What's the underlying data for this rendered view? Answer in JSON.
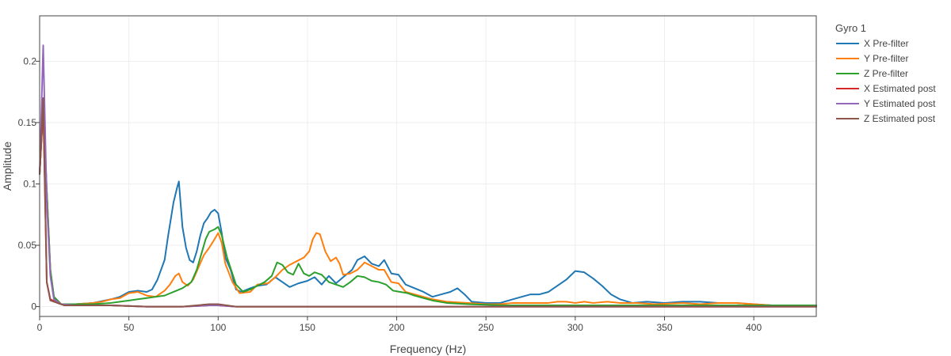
{
  "chart_data": {
    "type": "line",
    "title": "",
    "xlabel": "Frequency (Hz)",
    "ylabel": "Amplitude",
    "xlim": [
      0,
      435
    ],
    "ylim": [
      -0.008,
      0.237
    ],
    "x_ticks": [
      0,
      50,
      100,
      150,
      200,
      250,
      300,
      350,
      400
    ],
    "y_ticks": [
      0,
      0.05,
      0.1,
      0.15,
      0.2
    ],
    "y_tick_labels": [
      "0",
      "0.05",
      "0.1",
      "0.15",
      "0.2"
    ],
    "grid": true,
    "legend": {
      "title": "Gyro 1",
      "placement": "right"
    },
    "series": [
      {
        "name": "X Pre-filter",
        "color": "#1f77b4",
        "points": [
          [
            0,
            0.108
          ],
          [
            2,
            0.165
          ],
          [
            4,
            0.095
          ],
          [
            6,
            0.03
          ],
          [
            8,
            0.008
          ],
          [
            12,
            0.002
          ],
          [
            20,
            0.002
          ],
          [
            30,
            0.003
          ],
          [
            40,
            0.006
          ],
          [
            45,
            0.008
          ],
          [
            50,
            0.012
          ],
          [
            55,
            0.013
          ],
          [
            60,
            0.012
          ],
          [
            63,
            0.014
          ],
          [
            66,
            0.022
          ],
          [
            70,
            0.038
          ],
          [
            72,
            0.058
          ],
          [
            75,
            0.085
          ],
          [
            77,
            0.097
          ],
          [
            78,
            0.102
          ],
          [
            80,
            0.065
          ],
          [
            82,
            0.048
          ],
          [
            84,
            0.038
          ],
          [
            86,
            0.036
          ],
          [
            88,
            0.045
          ],
          [
            90,
            0.058
          ],
          [
            92,
            0.068
          ],
          [
            94,
            0.072
          ],
          [
            96,
            0.077
          ],
          [
            98,
            0.079
          ],
          [
            100,
            0.076
          ],
          [
            102,
            0.06
          ],
          [
            104,
            0.04
          ],
          [
            107,
            0.03
          ],
          [
            110,
            0.014
          ],
          [
            113,
            0.012
          ],
          [
            118,
            0.015
          ],
          [
            122,
            0.017
          ],
          [
            127,
            0.018
          ],
          [
            132,
            0.024
          ],
          [
            136,
            0.02
          ],
          [
            140,
            0.016
          ],
          [
            145,
            0.019
          ],
          [
            150,
            0.021
          ],
          [
            154,
            0.024
          ],
          [
            158,
            0.018
          ],
          [
            162,
            0.025
          ],
          [
            166,
            0.019
          ],
          [
            170,
            0.024
          ],
          [
            175,
            0.03
          ],
          [
            178,
            0.038
          ],
          [
            182,
            0.041
          ],
          [
            186,
            0.035
          ],
          [
            190,
            0.033
          ],
          [
            193,
            0.038
          ],
          [
            197,
            0.027
          ],
          [
            201,
            0.026
          ],
          [
            205,
            0.018
          ],
          [
            210,
            0.015
          ],
          [
            215,
            0.012
          ],
          [
            220,
            0.008
          ],
          [
            225,
            0.01
          ],
          [
            230,
            0.012
          ],
          [
            234,
            0.015
          ],
          [
            238,
            0.01
          ],
          [
            242,
            0.004
          ],
          [
            250,
            0.003
          ],
          [
            258,
            0.003
          ],
          [
            265,
            0.006
          ],
          [
            270,
            0.008
          ],
          [
            275,
            0.01
          ],
          [
            280,
            0.01
          ],
          [
            285,
            0.012
          ],
          [
            290,
            0.017
          ],
          [
            295,
            0.022
          ],
          [
            300,
            0.029
          ],
          [
            305,
            0.028
          ],
          [
            310,
            0.023
          ],
          [
            315,
            0.017
          ],
          [
            320,
            0.01
          ],
          [
            325,
            0.006
          ],
          [
            332,
            0.003
          ],
          [
            340,
            0.004
          ],
          [
            350,
            0.003
          ],
          [
            360,
            0.004
          ],
          [
            370,
            0.004
          ],
          [
            380,
            0.003
          ],
          [
            390,
            0.003
          ],
          [
            400,
            0.002
          ],
          [
            410,
            0.001
          ],
          [
            420,
            0.001
          ],
          [
            435,
            0.001
          ]
        ]
      },
      {
        "name": "Y Pre-filter",
        "color": "#ff7f0e",
        "points": [
          [
            0,
            0.108
          ],
          [
            2,
            0.163
          ],
          [
            4,
            0.095
          ],
          [
            6,
            0.03
          ],
          [
            8,
            0.008
          ],
          [
            12,
            0.002
          ],
          [
            20,
            0.002
          ],
          [
            30,
            0.003
          ],
          [
            35,
            0.004
          ],
          [
            40,
            0.006
          ],
          [
            45,
            0.007
          ],
          [
            50,
            0.011
          ],
          [
            55,
            0.012
          ],
          [
            60,
            0.009
          ],
          [
            65,
            0.008
          ],
          [
            70,
            0.013
          ],
          [
            73,
            0.018
          ],
          [
            76,
            0.025
          ],
          [
            78,
            0.027
          ],
          [
            80,
            0.02
          ],
          [
            83,
            0.017
          ],
          [
            86,
            0.022
          ],
          [
            89,
            0.032
          ],
          [
            92,
            0.042
          ],
          [
            95,
            0.048
          ],
          [
            98,
            0.055
          ],
          [
            100,
            0.06
          ],
          [
            102,
            0.052
          ],
          [
            104,
            0.035
          ],
          [
            108,
            0.02
          ],
          [
            112,
            0.011
          ],
          [
            118,
            0.012
          ],
          [
            122,
            0.018
          ],
          [
            128,
            0.019
          ],
          [
            132,
            0.024
          ],
          [
            136,
            0.03
          ],
          [
            140,
            0.034
          ],
          [
            144,
            0.037
          ],
          [
            148,
            0.04
          ],
          [
            151,
            0.045
          ],
          [
            153,
            0.055
          ],
          [
            155,
            0.06
          ],
          [
            157,
            0.059
          ],
          [
            160,
            0.045
          ],
          [
            163,
            0.037
          ],
          [
            166,
            0.04
          ],
          [
            168,
            0.035
          ],
          [
            170,
            0.026
          ],
          [
            174,
            0.027
          ],
          [
            178,
            0.03
          ],
          [
            182,
            0.036
          ],
          [
            186,
            0.033
          ],
          [
            190,
            0.03
          ],
          [
            193,
            0.03
          ],
          [
            197,
            0.02
          ],
          [
            201,
            0.019
          ],
          [
            205,
            0.012
          ],
          [
            210,
            0.01
          ],
          [
            215,
            0.008
          ],
          [
            220,
            0.006
          ],
          [
            228,
            0.004
          ],
          [
            240,
            0.003
          ],
          [
            250,
            0.002
          ],
          [
            258,
            0.002
          ],
          [
            265,
            0.003
          ],
          [
            275,
            0.003
          ],
          [
            285,
            0.003
          ],
          [
            290,
            0.004
          ],
          [
            295,
            0.004
          ],
          [
            300,
            0.003
          ],
          [
            305,
            0.004
          ],
          [
            310,
            0.003
          ],
          [
            318,
            0.004
          ],
          [
            325,
            0.003
          ],
          [
            335,
            0.003
          ],
          [
            345,
            0.002
          ],
          [
            360,
            0.003
          ],
          [
            370,
            0.002
          ],
          [
            380,
            0.003
          ],
          [
            390,
            0.003
          ],
          [
            400,
            0.002
          ],
          [
            410,
            0.001
          ],
          [
            420,
            0.001
          ],
          [
            435,
            0.001
          ]
        ]
      },
      {
        "name": "Z Pre-filter",
        "color": "#2ca02c",
        "points": [
          [
            0,
            0.108
          ],
          [
            2,
            0.162
          ],
          [
            4,
            0.093
          ],
          [
            6,
            0.03
          ],
          [
            8,
            0.008
          ],
          [
            12,
            0.002
          ],
          [
            20,
            0.002
          ],
          [
            30,
            0.002
          ],
          [
            40,
            0.003
          ],
          [
            45,
            0.004
          ],
          [
            50,
            0.005
          ],
          [
            55,
            0.006
          ],
          [
            60,
            0.007
          ],
          [
            65,
            0.008
          ],
          [
            70,
            0.009
          ],
          [
            75,
            0.012
          ],
          [
            80,
            0.015
          ],
          [
            85,
            0.02
          ],
          [
            88,
            0.03
          ],
          [
            91,
            0.045
          ],
          [
            93,
            0.055
          ],
          [
            95,
            0.061
          ],
          [
            98,
            0.063
          ],
          [
            100,
            0.065
          ],
          [
            102,
            0.058
          ],
          [
            105,
            0.04
          ],
          [
            110,
            0.018
          ],
          [
            114,
            0.012
          ],
          [
            118,
            0.014
          ],
          [
            122,
            0.017
          ],
          [
            126,
            0.02
          ],
          [
            130,
            0.025
          ],
          [
            133,
            0.036
          ],
          [
            136,
            0.034
          ],
          [
            139,
            0.028
          ],
          [
            142,
            0.026
          ],
          [
            145,
            0.035
          ],
          [
            148,
            0.027
          ],
          [
            151,
            0.025
          ],
          [
            154,
            0.028
          ],
          [
            158,
            0.026
          ],
          [
            162,
            0.02
          ],
          [
            166,
            0.018
          ],
          [
            170,
            0.016
          ],
          [
            174,
            0.02
          ],
          [
            178,
            0.025
          ],
          [
            182,
            0.024
          ],
          [
            186,
            0.021
          ],
          [
            190,
            0.02
          ],
          [
            194,
            0.018
          ],
          [
            198,
            0.013
          ],
          [
            202,
            0.012
          ],
          [
            206,
            0.011
          ],
          [
            210,
            0.009
          ],
          [
            215,
            0.007
          ],
          [
            220,
            0.005
          ],
          [
            228,
            0.003
          ],
          [
            240,
            0.002
          ],
          [
            260,
            0.001
          ],
          [
            280,
            0.001
          ],
          [
            300,
            0.001
          ],
          [
            350,
            0.001
          ],
          [
            435,
            0.001
          ]
        ]
      },
      {
        "name": "X Estimated post",
        "color": "#d62728",
        "points": [
          [
            0,
            0.108
          ],
          [
            2,
            0.163
          ],
          [
            4,
            0.02
          ],
          [
            6,
            0.006
          ],
          [
            10,
            0.003
          ],
          [
            14,
            0.001
          ],
          [
            20,
            0.001
          ],
          [
            40,
            0.001
          ],
          [
            60,
            0.0
          ],
          [
            80,
            0.0
          ],
          [
            95,
            0.001
          ],
          [
            100,
            0.001
          ],
          [
            110,
            0.0
          ],
          [
            150,
            0.0
          ],
          [
            200,
            0.0
          ],
          [
            300,
            0.0
          ],
          [
            435,
            0.0
          ]
        ]
      },
      {
        "name": "Y Estimated post",
        "color": "#9467bd",
        "points": [
          [
            0,
            0.108
          ],
          [
            2,
            0.213
          ],
          [
            4,
            0.085
          ],
          [
            6,
            0.025
          ],
          [
            8,
            0.006
          ],
          [
            12,
            0.002
          ],
          [
            20,
            0.001
          ],
          [
            40,
            0.001
          ],
          [
            60,
            0.0
          ],
          [
            80,
            0.0
          ],
          [
            95,
            0.001
          ],
          [
            100,
            0.001
          ],
          [
            110,
            0.0
          ],
          [
            150,
            0.0
          ],
          [
            200,
            0.0
          ],
          [
            300,
            0.0
          ],
          [
            435,
            0.0
          ]
        ]
      },
      {
        "name": "Z Estimated post",
        "color": "#8c564b",
        "points": [
          [
            0,
            0.108
          ],
          [
            2,
            0.17
          ],
          [
            4,
            0.02
          ],
          [
            6,
            0.005
          ],
          [
            10,
            0.003
          ],
          [
            14,
            0.001
          ],
          [
            20,
            0.001
          ],
          [
            40,
            0.001
          ],
          [
            60,
            0.0
          ],
          [
            80,
            0.0
          ],
          [
            95,
            0.002
          ],
          [
            100,
            0.002
          ],
          [
            110,
            0.0
          ],
          [
            150,
            0.0
          ],
          [
            200,
            0.0
          ],
          [
            300,
            0.0
          ],
          [
            435,
            0.0
          ]
        ]
      }
    ]
  }
}
